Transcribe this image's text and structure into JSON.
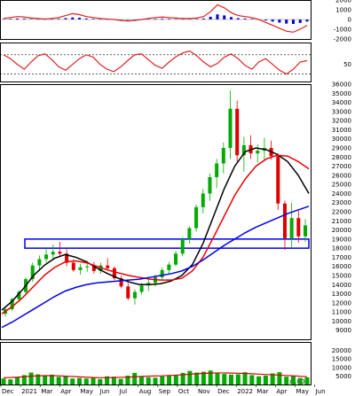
{
  "chart_data": [
    {
      "type": "line",
      "panel": "macd",
      "ylim": [
        -2000,
        2000
      ],
      "y_ticks": [
        2000,
        1000,
        0,
        -1000,
        -2000
      ],
      "colors": {
        "line": "#dd2222",
        "hist": "#0000cc"
      },
      "series": [
        {
          "values": [
            100,
            200,
            300,
            250,
            150,
            100,
            50,
            100,
            200,
            400,
            600,
            500,
            300,
            200,
            100,
            50,
            0,
            -100,
            -150,
            -100,
            0,
            100,
            200,
            250,
            200,
            150,
            100,
            100,
            150,
            300,
            800,
            1500,
            1200,
            700,
            400,
            300,
            200,
            0,
            -300,
            -600,
            -900,
            -1200,
            -1300,
            -1000,
            -600
          ]
        }
      ]
    },
    {
      "type": "line",
      "panel": "rsi",
      "y_ticks": [
        50
      ],
      "colors": {
        "line": "#dd2222",
        "dots": "#000000"
      },
      "series": [
        {
          "values": [
            70,
            62,
            50,
            40,
            55,
            68,
            72,
            60,
            45,
            38,
            50,
            62,
            70,
            65,
            50,
            40,
            35,
            45,
            58,
            70,
            72,
            60,
            48,
            42,
            55,
            66,
            74,
            78,
            68,
            55,
            45,
            52,
            65,
            72,
            62,
            48,
            40,
            55,
            62,
            50,
            38,
            30,
            40,
            55,
            58
          ]
        }
      ]
    },
    {
      "type": "line",
      "panel": "price",
      "ylim": [
        8000,
        36000
      ],
      "y_ticks": [
        36000,
        35000,
        34000,
        33000,
        32000,
        31000,
        30000,
        29000,
        28000,
        27000,
        26000,
        25000,
        24000,
        23000,
        22000,
        21000,
        20000,
        19000,
        18000,
        17000,
        16000,
        15000,
        14000,
        13000,
        12000,
        11000,
        10000,
        9000
      ],
      "support_zone": [
        18000,
        19000
      ],
      "colors": {
        "up": "#00aa00",
        "down": "#dd0000",
        "ma_short": "#000000",
        "ma_mid": "#ee0000",
        "ma_long": "#0000ee",
        "zone": "#0000ee"
      },
      "series": [
        {
          "name": "ma_short",
          "values": [
            11200,
            12200,
            13500,
            15000,
            16100,
            16900,
            17300,
            17000,
            16500,
            15800,
            15200,
            14700,
            14300,
            14000,
            14000,
            14100,
            14400,
            15000,
            16200,
            18500,
            21500,
            24500,
            27000,
            28600,
            29000,
            28800,
            28300,
            27500,
            26000,
            24000
          ]
        },
        {
          "name": "ma_mid",
          "values": [
            10800,
            11600,
            12600,
            13800,
            15000,
            15900,
            16500,
            16600,
            16400,
            16000,
            15600,
            15300,
            15000,
            14800,
            14600,
            14500,
            14500,
            14700,
            15500,
            17000,
            19200,
            21500,
            23800,
            25600,
            27000,
            27800,
            28200,
            28100,
            27500,
            26700
          ]
        },
        {
          "name": "ma_long",
          "values": [
            9300,
            9900,
            10600,
            11300,
            12000,
            12700,
            13300,
            13700,
            14000,
            14200,
            14300,
            14400,
            14500,
            14600,
            14800,
            15000,
            15200,
            15500,
            16000,
            16700,
            17500,
            18300,
            19000,
            19700,
            20300,
            20800,
            21300,
            21800,
            22200,
            22600
          ]
        }
      ],
      "candles": [
        {
          "o": 10800,
          "h": 11600,
          "l": 10500,
          "c": 11300
        },
        {
          "o": 11300,
          "h": 12600,
          "l": 11100,
          "c": 12400
        },
        {
          "o": 12400,
          "h": 13400,
          "l": 12100,
          "c": 13200
        },
        {
          "o": 13200,
          "h": 14800,
          "l": 13000,
          "c": 14600
        },
        {
          "o": 14600,
          "h": 16400,
          "l": 14300,
          "c": 16100
        },
        {
          "o": 16100,
          "h": 17200,
          "l": 15500,
          "c": 16800
        },
        {
          "o": 16800,
          "h": 18000,
          "l": 16400,
          "c": 17300
        },
        {
          "o": 17300,
          "h": 18400,
          "l": 16800,
          "c": 17600
        },
        {
          "o": 17600,
          "h": 18700,
          "l": 17000,
          "c": 17400
        },
        {
          "o": 17400,
          "h": 17900,
          "l": 16000,
          "c": 16400
        },
        {
          "o": 16400,
          "h": 16800,
          "l": 15400,
          "c": 15600
        },
        {
          "o": 15600,
          "h": 16300,
          "l": 15100,
          "c": 15900
        },
        {
          "o": 15900,
          "h": 16600,
          "l": 15400,
          "c": 16000
        },
        {
          "o": 16000,
          "h": 16500,
          "l": 15200,
          "c": 15500
        },
        {
          "o": 15500,
          "h": 16400,
          "l": 15200,
          "c": 16100
        },
        {
          "o": 16100,
          "h": 16900,
          "l": 15600,
          "c": 15800
        },
        {
          "o": 15800,
          "h": 16000,
          "l": 14500,
          "c": 14700
        },
        {
          "o": 14700,
          "h": 15000,
          "l": 13600,
          "c": 13800
        },
        {
          "o": 13800,
          "h": 14200,
          "l": 12300,
          "c": 12500
        },
        {
          "o": 12500,
          "h": 13500,
          "l": 11800,
          "c": 13200
        },
        {
          "o": 13200,
          "h": 14200,
          "l": 12900,
          "c": 13900
        },
        {
          "o": 13900,
          "h": 14600,
          "l": 13300,
          "c": 14200
        },
        {
          "o": 14200,
          "h": 15100,
          "l": 13800,
          "c": 14800
        },
        {
          "o": 14800,
          "h": 15900,
          "l": 14500,
          "c": 15600
        },
        {
          "o": 15600,
          "h": 16500,
          "l": 15100,
          "c": 16200
        },
        {
          "o": 16200,
          "h": 17700,
          "l": 16000,
          "c": 17400
        },
        {
          "o": 17400,
          "h": 19200,
          "l": 17100,
          "c": 19000
        },
        {
          "o": 19000,
          "h": 20400,
          "l": 18500,
          "c": 20200
        },
        {
          "o": 20200,
          "h": 22800,
          "l": 19800,
          "c": 22500
        },
        {
          "o": 22500,
          "h": 24500,
          "l": 21800,
          "c": 24000
        },
        {
          "o": 24000,
          "h": 26200,
          "l": 23200,
          "c": 25800
        },
        {
          "o": 25800,
          "h": 27800,
          "l": 24600,
          "c": 27300
        },
        {
          "o": 27300,
          "h": 29600,
          "l": 26200,
          "c": 29000
        },
        {
          "o": 29000,
          "h": 35300,
          "l": 27800,
          "c": 33300
        },
        {
          "o": 33300,
          "h": 34200,
          "l": 27500,
          "c": 28200
        },
        {
          "o": 28200,
          "h": 30200,
          "l": 26400,
          "c": 29300
        },
        {
          "o": 29300,
          "h": 30400,
          "l": 27800,
          "c": 28400
        },
        {
          "o": 28400,
          "h": 29400,
          "l": 27400,
          "c": 28700
        },
        {
          "o": 28700,
          "h": 30100,
          "l": 27600,
          "c": 29000
        },
        {
          "o": 29000,
          "h": 29800,
          "l": 27700,
          "c": 28100
        },
        {
          "o": 28100,
          "h": 28400,
          "l": 22200,
          "c": 22900
        },
        {
          "o": 22900,
          "h": 23200,
          "l": 17800,
          "c": 19100
        },
        {
          "o": 19100,
          "h": 23000,
          "l": 18100,
          "c": 21300
        },
        {
          "o": 21300,
          "h": 22100,
          "l": 18600,
          "c": 19300
        },
        {
          "o": 19300,
          "h": 21200,
          "l": 18700,
          "c": 20500
        }
      ]
    },
    {
      "type": "bar",
      "panel": "volume",
      "ylim": [
        0,
        25000
      ],
      "y_ticks": [
        20000,
        15000,
        10000,
        5000
      ],
      "unit": "x1000",
      "colors": {
        "bars": "#00aa00",
        "ma": "#dd0000"
      },
      "values": [
        3500,
        3000,
        4500,
        5500,
        7000,
        6000,
        5200,
        5800,
        4500,
        5000,
        3500,
        3800,
        3500,
        4200,
        3200,
        4800,
        4600,
        3300,
        5200,
        6800,
        5000,
        4200,
        4000,
        4800,
        5500,
        5200,
        6800,
        8000,
        7000,
        7500,
        8200,
        6500,
        6200,
        5800,
        6000,
        7200,
        5500,
        4800,
        5200,
        6500,
        7200,
        4600,
        5000,
        3800,
        4200
      ],
      "ma": [
        4000,
        4100,
        4300,
        4600,
        4900,
        5100,
        5200,
        5200,
        5100,
        4900,
        4700,
        4500,
        4300,
        4100,
        4000,
        4000,
        4100,
        4200,
        4300,
        4500,
        4700,
        4900,
        5000,
        5100,
        5300,
        5500,
        5700,
        6000,
        6300,
        6500,
        6700,
        6800,
        6800,
        6700,
        6600,
        6500,
        6300,
        6100,
        5900,
        5700,
        5500,
        5300,
        5100,
        4800,
        4600
      ]
    }
  ],
  "x_axis": {
    "labels": [
      "Dec",
      "2021",
      "Mar",
      "Apr",
      "May",
      "Jun",
      "Jul",
      "Aug",
      "Sep",
      "Oct",
      "Nov",
      "Dec",
      "2022",
      "Mar",
      "Apr",
      "May",
      "Jun"
    ]
  }
}
